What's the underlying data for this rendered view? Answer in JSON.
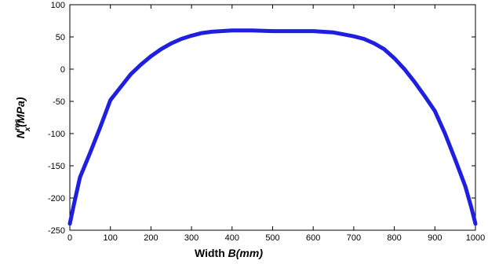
{
  "chart_data": {
    "type": "line",
    "title": "",
    "xlabel": {
      "prefix": "Width ",
      "symbol": "B",
      "unit": "(mm)"
    },
    "ylabel": {
      "symbol": "N",
      "superscript": "res",
      "subscript": "x",
      "unit": "(MPa)"
    },
    "xlim": [
      0,
      1000
    ],
    "ylim": [
      -250,
      100
    ],
    "xticks": [
      0,
      100,
      200,
      300,
      400,
      500,
      600,
      700,
      800,
      900,
      1000
    ],
    "yticks": [
      100,
      50,
      0,
      -50,
      -100,
      -150,
      -200,
      -250
    ],
    "grid": false,
    "line_color": "#1f1fe0",
    "series": [
      {
        "x": [
          0,
          10,
          25,
          50,
          75,
          100,
          125,
          150,
          175,
          200,
          225,
          250,
          275,
          300,
          325,
          350,
          400,
          450,
          500,
          550,
          600,
          650,
          700,
          725,
          750,
          775,
          800,
          825,
          850,
          875,
          900,
          925,
          950,
          975,
          990,
          1000
        ],
        "y": [
          -240,
          -210,
          -168,
          -130,
          -90,
          -48,
          -28,
          -8,
          7,
          20,
          31,
          40,
          47,
          52,
          56,
          58,
          60,
          60,
          59,
          59,
          59,
          57,
          51,
          47,
          40,
          31,
          17,
          0,
          -20,
          -42,
          -65,
          -100,
          -140,
          -182,
          -215,
          -240
        ]
      }
    ]
  }
}
